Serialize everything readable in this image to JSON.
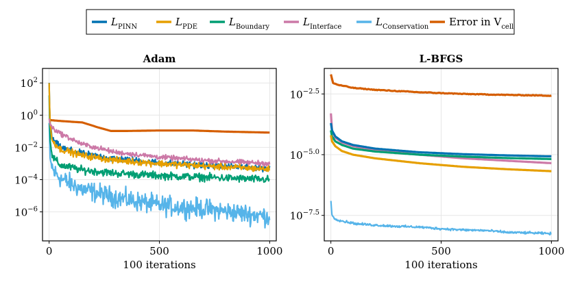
{
  "chart_data": {
    "type": "line",
    "legend": {
      "placement": "top-center",
      "entries": [
        {
          "id": "pinn",
          "base": "L",
          "sub": "PINN",
          "color": "#0072b2"
        },
        {
          "id": "pde",
          "base": "L",
          "sub": "PDE",
          "color": "#e69f00"
        },
        {
          "id": "boundary",
          "base": "L",
          "sub": "Boundary",
          "color": "#009e73"
        },
        {
          "id": "interface",
          "base": "L",
          "sub": "Interface",
          "color": "#cc79a7"
        },
        {
          "id": "conservation",
          "base": "L",
          "sub": "Conservation",
          "color": "#56b4e9"
        },
        {
          "id": "error",
          "base": "Error in V",
          "sub": "cell",
          "color": "#d55e00"
        }
      ]
    },
    "panels": [
      {
        "id": "adam",
        "title": "Adam",
        "xlabel": "100 iterations",
        "ylabel": "",
        "yscale": "log10",
        "xlim": [
          -30,
          1030
        ],
        "ylim_log10": [
          -7.8,
          2.9
        ],
        "xticks": [
          0,
          500,
          1000
        ],
        "xtick_labels": [
          "0",
          "500",
          "1000"
        ],
        "yticks_log10": [
          2,
          0,
          -2,
          -4,
          -6
        ],
        "ytick_labels": [
          {
            "base": "10",
            "exp": "2"
          },
          {
            "base": "10",
            "exp": "0"
          },
          {
            "base": "10",
            "exp": "−2"
          },
          {
            "base": "10",
            "exp": "−4"
          },
          {
            "base": "10",
            "exp": "−6"
          }
        ],
        "series": [
          {
            "ref": "error",
            "mode": "smooth",
            "x": [
              0,
              60,
              150,
              220,
              280,
              350,
              500,
              650,
              800,
              1000
            ],
            "log10y": [
              -0.3,
              -0.37,
              -0.45,
              -0.75,
              -0.98,
              -0.98,
              -0.95,
              -0.95,
              -1.02,
              -1.08
            ]
          },
          {
            "ref": "conservation",
            "mode": "noisy",
            "x": [
              0,
              5,
              20,
              60,
              150,
              300,
              500,
              700,
              1000
            ],
            "log10y": [
              -0.5,
              -2.8,
              -3.5,
              -4.0,
              -4.6,
              -5.1,
              -5.6,
              -5.8,
              -6.3
            ],
            "noise": 0.9
          },
          {
            "ref": "boundary",
            "mode": "noisy",
            "x": [
              0,
              4,
              15,
              50,
              150,
              300,
              500,
              700,
              1000
            ],
            "log10y": [
              1.2,
              -1.5,
              -2.6,
              -3.1,
              -3.4,
              -3.6,
              -3.75,
              -3.85,
              -4.0
            ],
            "noise": 0.35
          },
          {
            "ref": "pinn",
            "mode": "noisy",
            "x": [
              0,
              4,
              15,
              50,
              150,
              300,
              500,
              700,
              1000
            ],
            "log10y": [
              2.0,
              -0.5,
              -1.5,
              -2.0,
              -2.4,
              -2.7,
              -2.95,
              -3.1,
              -3.3
            ],
            "noise": 0.3
          },
          {
            "ref": "pde",
            "mode": "noisy",
            "x": [
              0,
              4,
              15,
              50,
              150,
              300,
              500,
              700,
              1000
            ],
            "log10y": [
              2.0,
              -0.5,
              -1.6,
              -2.1,
              -2.5,
              -2.8,
              -3.0,
              -3.15,
              -3.35
            ],
            "noise": 0.3
          },
          {
            "ref": "interface",
            "mode": "noisy",
            "x": [
              0,
              5,
              20,
              60,
              150,
              300,
              500,
              700,
              1000
            ],
            "log10y": [
              -0.2,
              -0.6,
              -0.85,
              -1.2,
              -1.8,
              -2.3,
              -2.6,
              -2.8,
              -3.0
            ],
            "noise": 0.22
          }
        ]
      },
      {
        "id": "lbfgs",
        "title": "L-BFGS",
        "xlabel": "100 iterations",
        "ylabel": "",
        "yscale": "log10",
        "xlim": [
          -30,
          1030
        ],
        "ylim_log10": [
          -8.55,
          -1.45
        ],
        "xticks": [
          0,
          500,
          1000
        ],
        "xtick_labels": [
          "0",
          "500",
          "1000"
        ],
        "yticks_log10": [
          -2.5,
          -5.0,
          -7.5
        ],
        "ytick_labels": [
          {
            "base": "10",
            "exp": "−2.5"
          },
          {
            "base": "10",
            "exp": "−5.0"
          },
          {
            "base": "10",
            "exp": "−7.5"
          }
        ],
        "series": [
          {
            "ref": "error",
            "mode": "smooth",
            "x": [
              0,
              10,
              30,
              100,
              200,
              400,
              600,
              800,
              1000
            ],
            "log10y": [
              -1.7,
              -2.05,
              -2.12,
              -2.25,
              -2.33,
              -2.43,
              -2.5,
              -2.54,
              -2.57
            ],
            "noise": 0.015
          },
          {
            "ref": "interface",
            "mode": "smooth",
            "x": [
              0,
              5,
              20,
              50,
              100,
              200,
              400,
              600,
              800,
              1000
            ],
            "log10y": [
              -3.3,
              -4.0,
              -4.3,
              -4.5,
              -4.65,
              -4.8,
              -5.0,
              -5.15,
              -5.25,
              -5.35
            ]
          },
          {
            "ref": "pinn",
            "mode": "smooth",
            "x": [
              0,
              5,
              20,
              50,
              100,
              200,
              400,
              600,
              800,
              1000
            ],
            "log10y": [
              -3.7,
              -4.0,
              -4.25,
              -4.45,
              -4.6,
              -4.75,
              -4.9,
              -4.98,
              -5.03,
              -5.07
            ]
          },
          {
            "ref": "boundary",
            "mode": "smooth",
            "x": [
              0,
              5,
              20,
              50,
              100,
              200,
              400,
              600,
              800,
              1000
            ],
            "log10y": [
              -4.0,
              -4.25,
              -4.45,
              -4.6,
              -4.75,
              -4.87,
              -5.0,
              -5.08,
              -5.14,
              -5.18
            ]
          },
          {
            "ref": "pde",
            "mode": "smooth",
            "x": [
              0,
              5,
              20,
              50,
              100,
              200,
              400,
              600,
              800,
              1000
            ],
            "log10y": [
              -4.2,
              -4.45,
              -4.65,
              -4.85,
              -5.0,
              -5.15,
              -5.35,
              -5.5,
              -5.6,
              -5.68
            ]
          },
          {
            "ref": "conservation",
            "mode": "noisy",
            "x": [
              0,
              5,
              20,
              60,
              120,
              200,
              300,
              400,
              500,
              600,
              700,
              800,
              900,
              1000
            ],
            "log10y": [
              -6.9,
              -7.5,
              -7.65,
              -7.75,
              -7.85,
              -7.9,
              -7.95,
              -7.98,
              -8.05,
              -8.1,
              -8.12,
              -8.2,
              -8.22,
              -8.25
            ],
            "noise": 0.07
          }
        ]
      }
    ]
  }
}
